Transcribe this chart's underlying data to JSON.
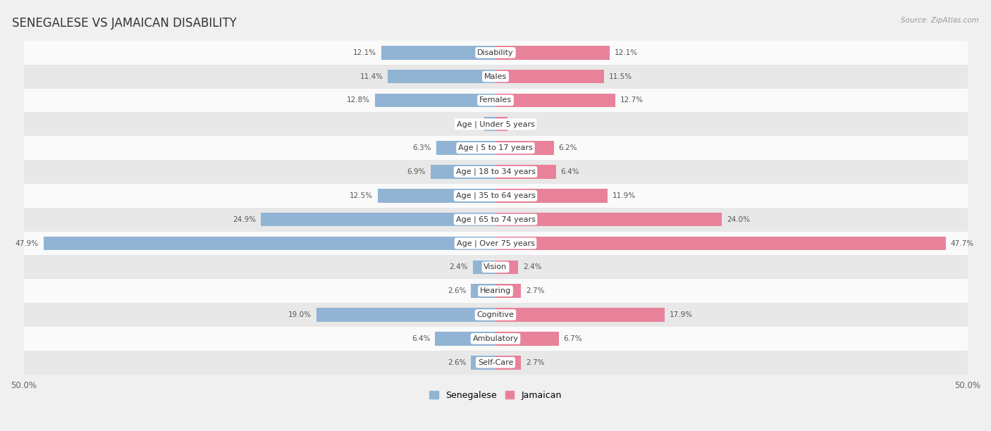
{
  "title": "SENEGALESE VS JAMAICAN DISABILITY",
  "source": "Source: ZipAtlas.com",
  "categories": [
    "Disability",
    "Males",
    "Females",
    "Age | Under 5 years",
    "Age | 5 to 17 years",
    "Age | 18 to 34 years",
    "Age | 35 to 64 years",
    "Age | 65 to 74 years",
    "Age | Over 75 years",
    "Vision",
    "Hearing",
    "Cognitive",
    "Ambulatory",
    "Self-Care"
  ],
  "senegalese": [
    12.1,
    11.4,
    12.8,
    1.2,
    6.3,
    6.9,
    12.5,
    24.9,
    47.9,
    2.4,
    2.6,
    19.0,
    6.4,
    2.6
  ],
  "jamaican": [
    12.1,
    11.5,
    12.7,
    1.3,
    6.2,
    6.4,
    11.9,
    24.0,
    47.7,
    2.4,
    2.7,
    17.9,
    6.7,
    2.7
  ],
  "max_val": 50.0,
  "blue_color": "#92b4d4",
  "pink_color": "#e8829a",
  "bar_height": 0.58,
  "bg_color": "#f0f0f0",
  "row_colors": [
    "#fafafa",
    "#e8e8e8"
  ],
  "title_fontsize": 12,
  "label_fontsize": 8.0,
  "value_fontsize": 7.5,
  "axis_fontsize": 8.5,
  "legend_labels": [
    "Senegalese",
    "Jamaican"
  ]
}
